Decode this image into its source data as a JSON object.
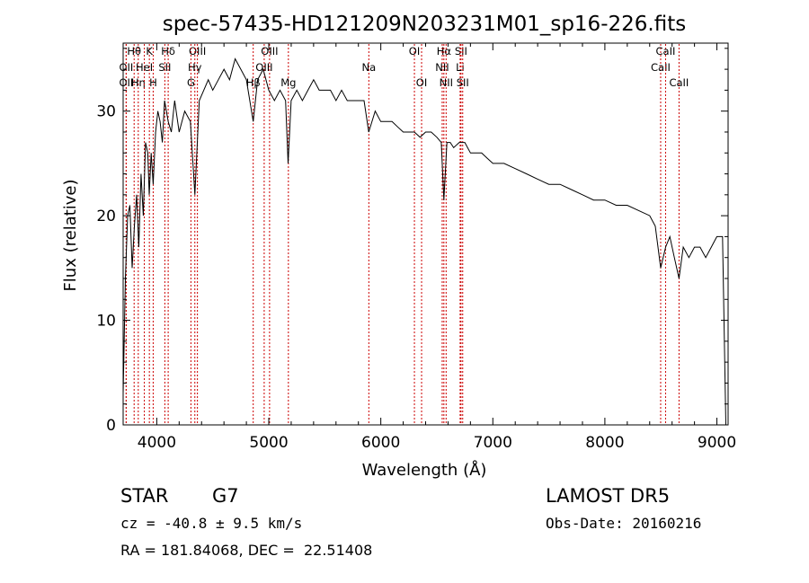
{
  "chart_data": {
    "type": "line",
    "title": "spec-57435-HD121209N203231M01_sp16-226.fits",
    "xlabel": "Wavelength (Å)",
    "ylabel": "Flux (relative)",
    "xlim": [
      3700,
      9100
    ],
    "ylim": [
      0,
      36.5
    ],
    "xticks": [
      4000,
      5000,
      6000,
      7000,
      8000,
      9000
    ],
    "yticks": [
      0,
      10,
      20,
      30
    ],
    "grid": false,
    "legend": "none",
    "line_color": "#000000",
    "marker_color": "#cc0000",
    "series": [
      {
        "x": [
          3700,
          3720,
          3740,
          3760,
          3780,
          3800,
          3820,
          3840,
          3860,
          3880,
          3900,
          3920,
          3933,
          3950,
          3968,
          3990,
          4010,
          4030,
          4050,
          4070,
          4102,
          4130,
          4160,
          4200,
          4250,
          4300,
          4340,
          4380,
          4420,
          4460,
          4500,
          4550,
          4600,
          4650,
          4700,
          4750,
          4800,
          4861,
          4900,
          4950,
          5000,
          5050,
          5100,
          5150,
          5172,
          5200,
          5250,
          5300,
          5350,
          5400,
          5450,
          5500,
          5550,
          5600,
          5650,
          5700,
          5750,
          5800,
          5850,
          5892,
          5950,
          6000,
          6050,
          6100,
          6150,
          6200,
          6250,
          6300,
          6350,
          6400,
          6450,
          6500,
          6540,
          6563,
          6590,
          6620,
          6650,
          6700,
          6750,
          6800,
          6850,
          6900,
          6950,
          7000,
          7100,
          7200,
          7300,
          7400,
          7500,
          7600,
          7700,
          7800,
          7900,
          8000,
          8100,
          8200,
          8300,
          8400,
          8450,
          8498,
          8542,
          8580,
          8620,
          8662,
          8700,
          8750,
          8800,
          8850,
          8900,
          8950,
          9000,
          9050,
          9080
        ],
        "y": [
          3,
          14,
          20,
          21,
          15,
          19,
          22,
          17,
          24,
          20,
          27,
          26,
          22,
          26,
          23,
          28,
          30,
          29,
          27,
          31,
          29,
          28,
          31,
          28,
          30,
          29,
          22,
          31,
          32,
          33,
          32,
          33,
          34,
          33,
          35,
          34,
          33,
          29,
          33,
          34,
          32,
          31,
          32,
          31,
          25,
          31,
          32,
          31,
          32,
          33,
          32,
          32,
          32,
          31,
          32,
          31,
          31,
          31,
          31,
          28,
          30,
          29,
          29,
          29,
          28.5,
          28,
          28,
          28,
          27.5,
          28,
          28,
          27.5,
          27,
          21.5,
          27,
          27,
          26.5,
          27,
          27,
          26,
          26,
          26,
          25.5,
          25,
          25,
          24.5,
          24,
          23.5,
          23,
          23,
          22.5,
          22,
          21.5,
          21.5,
          21,
          21,
          20.5,
          20,
          19,
          15,
          17,
          18,
          16,
          14,
          17,
          16,
          17,
          17,
          16,
          17,
          18,
          18,
          0
        ]
      }
    ],
    "lines": [
      {
        "label": "Hθ",
        "x": 3798,
        "row": 0
      },
      {
        "label": "OII",
        "x": 3727,
        "row": 1
      },
      {
        "label": "OII",
        "x": 3727,
        "row": 2
      },
      {
        "label": "Hη",
        "x": 3835,
        "row": 2
      },
      {
        "label": "HeI",
        "x": 3889,
        "row": 1
      },
      {
        "label": "K",
        "x": 3934,
        "row": 0
      },
      {
        "label": "H",
        "x": 3968,
        "row": 2
      },
      {
        "label": "SII",
        "x": 4072,
        "row": 1
      },
      {
        "label": "Hδ",
        "x": 4102,
        "row": 0
      },
      {
        "label": "OIII",
        "x": 4363,
        "row": 0
      },
      {
        "label": "Hγ",
        "x": 4340,
        "row": 1
      },
      {
        "label": "G",
        "x": 4305,
        "row": 2
      },
      {
        "label": "Hβ",
        "x": 4861,
        "row": 2
      },
      {
        "label": "OIII",
        "x": 4959,
        "row": 1
      },
      {
        "label": "OIII",
        "x": 5007,
        "row": 0
      },
      {
        "label": "Mg",
        "x": 5175,
        "row": 2
      },
      {
        "label": "Na",
        "x": 5893,
        "row": 1
      },
      {
        "label": "OI",
        "x": 6300,
        "row": 0
      },
      {
        "label": "OI",
        "x": 6364,
        "row": 2
      },
      {
        "label": "Hα",
        "x": 6563,
        "row": 0
      },
      {
        "label": "NII",
        "x": 6548,
        "row": 1
      },
      {
        "label": "NII",
        "x": 6583,
        "row": 2
      },
      {
        "label": "SII",
        "x": 6716,
        "row": 0
      },
      {
        "label": "Li",
        "x": 6708,
        "row": 1
      },
      {
        "label": "SII",
        "x": 6731,
        "row": 2
      },
      {
        "label": "CaII",
        "x": 8498,
        "row": 1
      },
      {
        "label": "CaII",
        "x": 8542,
        "row": 0
      },
      {
        "label": "CaII",
        "x": 8662,
        "row": 2
      }
    ]
  },
  "info": {
    "object_class": "STAR",
    "subclass": "G7",
    "survey": "LAMOST DR5",
    "redshift": "cz = -40.8 ± 9.5 km/s",
    "obs_date": "Obs-Date: 20160216",
    "coords": "RA = 181.84068, DEC =  22.51408"
  }
}
